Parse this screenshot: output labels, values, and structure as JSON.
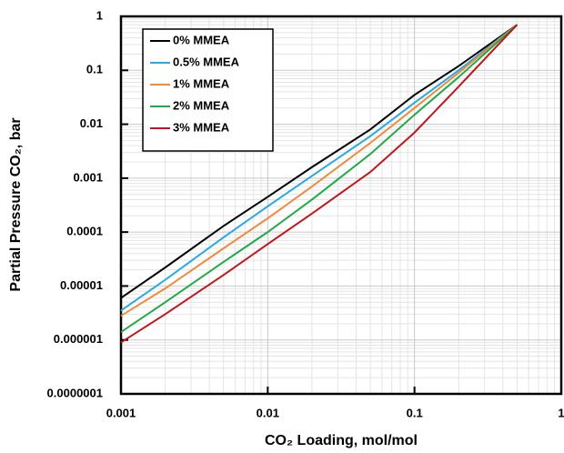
{
  "chart_data": {
    "type": "line",
    "x_label": "CO₂ Loading, mol/mol",
    "y_label": "Partial Pressure CO₂, bar",
    "x": [
      0.001,
      0.002,
      0.005,
      0.01,
      0.02,
      0.05,
      0.1,
      0.2,
      0.5
    ],
    "series": [
      {
        "name": "0% MMEA",
        "color": "#000000",
        "values": [
          6e-06,
          2.2e-05,
          0.00013,
          0.00045,
          0.0016,
          0.008,
          0.035,
          0.12,
          0.7
        ]
      },
      {
        "name": "0.5% MMEA",
        "color": "#29a9e1",
        "values": [
          3.5e-06,
          1.3e-05,
          8e-05,
          0.0003,
          0.0011,
          0.006,
          0.025,
          0.1,
          0.7
        ]
      },
      {
        "name": "1% MMEA",
        "color": "#f08a3c",
        "values": [
          2.8e-06,
          9e-06,
          5e-05,
          0.00018,
          0.0007,
          0.0045,
          0.02,
          0.09,
          0.7
        ]
      },
      {
        "name": "2% MMEA",
        "color": "#22aa4a",
        "values": [
          1.4e-06,
          5e-06,
          2.8e-05,
          0.0001,
          0.0004,
          0.0028,
          0.015,
          0.075,
          0.7
        ]
      },
      {
        "name": "3% MMEA",
        "color": "#c0161c",
        "values": [
          9e-07,
          3e-06,
          1.6e-05,
          6e-05,
          0.00022,
          0.0013,
          0.007,
          0.05,
          0.7
        ]
      }
    ],
    "xlim": [
      0.001,
      1
    ],
    "ylim": [
      1e-07,
      1
    ],
    "xticks": [
      0.001,
      0.01,
      0.1,
      1
    ],
    "yticks": [
      {
        "value": 1e-07,
        "label": "0.0000001"
      },
      1e-06,
      1e-05,
      0.0001,
      0.001,
      0.01,
      0.1,
      1
    ],
    "xscale": "log",
    "yscale": "log",
    "grid": true,
    "legend": "upper left"
  }
}
